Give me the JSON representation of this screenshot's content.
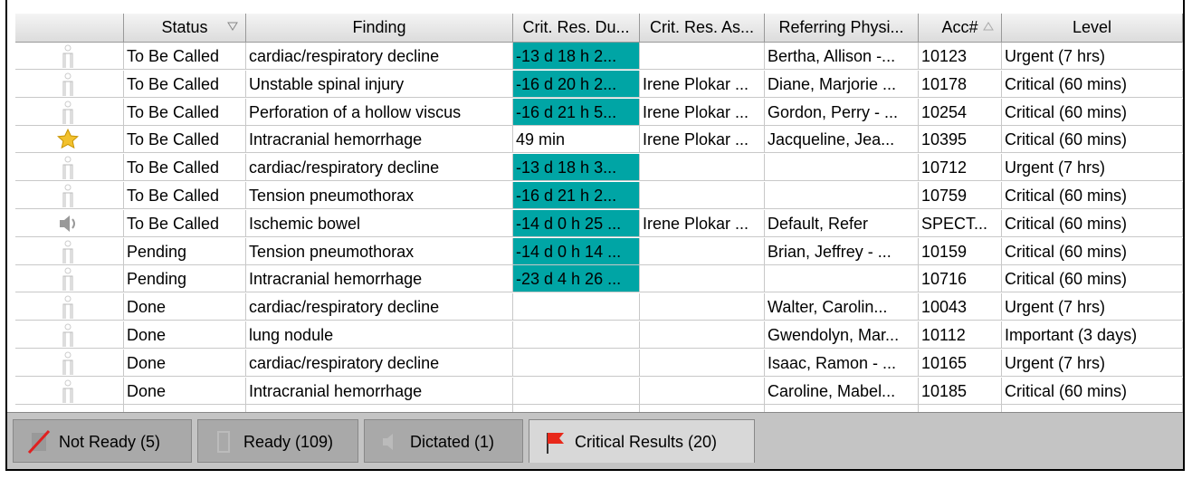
{
  "table": {
    "headers": [
      "Status",
      "Finding",
      "Crit. Res. Du...",
      "Crit. Res. As...",
      "Referring Physi...",
      "Acc#",
      "Level"
    ],
    "rows": [
      [
        "To Be Called",
        "cardiac/respiratory decline",
        "-13 d 18 h 2...",
        null,
        "Bertha, Allison -...",
        "10123",
        "Urgent (7 hrs)"
      ],
      [
        "To Be Called",
        "Unstable spinal injury",
        "-16 d 20 h 2...",
        "Irene Plokar ...",
        "Diane, Marjorie ...",
        "10178",
        "Critical (60 mins)"
      ],
      [
        "To Be Called",
        "Perforation of a hollow viscus",
        "-16 d 21 h 5...",
        "Irene Plokar ...",
        "Gordon, Perry - ...",
        "10254",
        "Critical (60 mins)"
      ],
      [
        "To Be Called",
        "Intracranial hemorrhage",
        "49 min",
        "Irene Plokar ...",
        "Jacqueline, Jea...",
        "10395",
        "Critical (60 mins)"
      ],
      [
        "To Be Called",
        "cardiac/respiratory decline",
        "-13 d 18 h 3...",
        null,
        null,
        "10712",
        "Urgent (7 hrs)"
      ],
      [
        "To Be Called",
        "Tension pneumothorax",
        "-16 d 21 h 2...",
        null,
        null,
        "10759",
        "Critical (60 mins)"
      ],
      [
        "To Be Called",
        "Ischemic bowel",
        "-14 d 0 h 25 ...",
        "Irene Plokar ...",
        "Default, Refer",
        "SPECT...",
        "Critical (60 mins)"
      ],
      [
        "Pending",
        "Tension pneumothorax",
        "-14 d 0 h 14 ...",
        null,
        "Brian, Jeffrey - ...",
        "10159",
        "Critical (60 mins)"
      ],
      [
        "Pending",
        "Intracranial hemorrhage",
        "-23 d 4 h 26 ...",
        null,
        null,
        "10716",
        "Critical (60 mins)"
      ],
      [
        "Done",
        "cardiac/respiratory decline",
        null,
        null,
        "Walter, Carolin...",
        "10043",
        "Urgent (7 hrs)"
      ],
      [
        "Done",
        "lung nodule",
        null,
        null,
        "Gwendolyn, Mar...",
        "10112",
        "Important (3 days)"
      ],
      [
        "Done",
        "cardiac/respiratory decline",
        null,
        null,
        "Isaac, Ramon - ...",
        "10165",
        "Urgent (7 hrs)"
      ],
      [
        "Done",
        "Intracranial hemorrhage",
        null,
        null,
        "Caroline, Mabel...",
        "10185",
        "Critical (60 mins)"
      ]
    ]
  },
  "tabs": [
    "Not Ready (5)",
    "Ready (109)",
    "Dictated (1)",
    "Critical Results (20)"
  ]
}
